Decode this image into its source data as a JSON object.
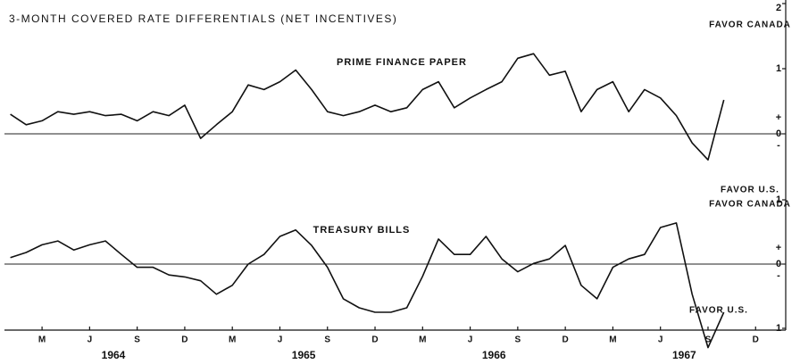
{
  "title": "3-MONTH COVERED RATE DIFFERENTIALS (NET INCENTIVES)",
  "chart_data": [
    {
      "type": "line",
      "title": "PRIME FINANCE PAPER",
      "favor_labels": [
        "FAVOR CANADA",
        "FAVOR U.S."
      ],
      "signs": [
        "+",
        "-"
      ],
      "x": [
        0,
        1,
        2,
        3,
        4,
        5,
        6,
        7,
        8,
        9,
        10,
        11,
        12,
        13,
        14,
        15,
        16,
        17,
        18,
        19,
        20,
        21,
        22,
        23,
        24,
        25,
        26,
        27,
        28,
        29,
        30,
        31,
        32,
        33,
        34,
        35,
        36,
        37,
        38,
        39,
        40,
        41,
        42,
        43,
        44,
        45
      ],
      "series": [
        {
          "name": "PRIME FINANCE PAPER",
          "color": "#111111",
          "values": [
            0.3,
            0.14,
            0.2,
            0.34,
            0.3,
            0.34,
            0.28,
            0.3,
            0.2,
            0.34,
            0.28,
            0.44,
            -0.07,
            0.14,
            0.34,
            0.75,
            0.68,
            0.8,
            0.98,
            0.68,
            0.34,
            0.28,
            0.34,
            0.44,
            0.34,
            0.4,
            0.68,
            0.8,
            0.4,
            0.55,
            0.68,
            0.8,
            1.16,
            1.23,
            0.9,
            0.96,
            0.34,
            0.68,
            0.8,
            0.34,
            0.68,
            0.55,
            0.28,
            -0.14,
            -0.4,
            0.52
          ]
        }
      ],
      "ylim": [
        -1,
        2
      ],
      "yticks": [
        2,
        1,
        0
      ],
      "zero_line": true
    },
    {
      "type": "line",
      "title": "TREASURY BILLS",
      "favor_labels": [
        "FAVOR CANADA",
        "FAVOR U.S."
      ],
      "signs": [
        "+",
        "-"
      ],
      "x": [
        0,
        1,
        2,
        3,
        4,
        5,
        6,
        7,
        8,
        9,
        10,
        11,
        12,
        13,
        14,
        15,
        16,
        17,
        18,
        19,
        20,
        21,
        22,
        23,
        24,
        25,
        26,
        27,
        28,
        29,
        30,
        31,
        32,
        33,
        34,
        35,
        36,
        37,
        38,
        39,
        40,
        41,
        42,
        43,
        44,
        45
      ],
      "series": [
        {
          "name": "TREASURY BILLS",
          "color": "#111111",
          "values": [
            0.1,
            0.18,
            0.3,
            0.36,
            0.22,
            0.3,
            0.36,
            0.15,
            -0.05,
            -0.05,
            -0.17,
            -0.2,
            -0.26,
            -0.47,
            -0.33,
            0,
            0.15,
            0.43,
            0.53,
            0.29,
            -0.05,
            -0.54,
            -0.68,
            -0.75,
            -0.75,
            -0.68,
            -0.19,
            0.39,
            0.15,
            0.15,
            0.43,
            0.08,
            -0.12,
            0.01,
            0.08,
            0.29,
            -0.33,
            -0.54,
            -0.05,
            0.08,
            0.15,
            0.57,
            0.64,
            -0.47,
            -1.3,
            -0.75
          ]
        }
      ],
      "ylim": [
        -1,
        1
      ],
      "yticks": [
        1,
        0,
        {
          "value": -1,
          "label": "1"
        }
      ],
      "zero_line": true,
      "xlim": [
        -0.37,
        48.9
      ],
      "xticks": [
        {
          "value": 2,
          "label": "M"
        },
        {
          "value": 5,
          "label": "J"
        },
        {
          "value": 8,
          "label": "S"
        },
        {
          "value": 11,
          "label": "D"
        },
        {
          "value": 14,
          "label": "M"
        },
        {
          "value": 17,
          "label": "J"
        },
        {
          "value": 20,
          "label": "S"
        },
        {
          "value": 23,
          "label": "D"
        },
        {
          "value": 26,
          "label": "M"
        },
        {
          "value": 29,
          "label": "J"
        },
        {
          "value": 32,
          "label": "S"
        },
        {
          "value": 35,
          "label": "D"
        },
        {
          "value": 38,
          "label": "M"
        },
        {
          "value": 41,
          "label": "J"
        },
        {
          "value": 44,
          "label": "S"
        },
        {
          "value": 47,
          "label": "D"
        }
      ],
      "x_group_labels": [
        "1964",
        "1965",
        "1966",
        "1967"
      ]
    }
  ]
}
